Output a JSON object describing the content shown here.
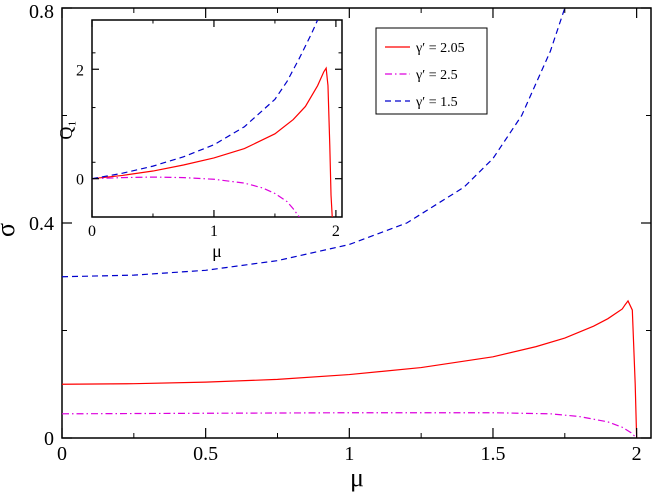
{
  "chart_data": [
    {
      "type": "line",
      "xlabel": "μ",
      "ylabel": "σ",
      "xlim": [
        0,
        2.05
      ],
      "ylim": [
        0,
        0.8
      ],
      "xticks": [
        0,
        0.5,
        1,
        1.5,
        2
      ],
      "xtick_labels": [
        "0",
        "0.5",
        "1",
        "1.5",
        "2"
      ],
      "yticks": [
        0,
        0.4,
        0.8
      ],
      "ytick_labels": [
        "0",
        "0.4",
        "0.8"
      ],
      "legend": {
        "placement": "top-right"
      },
      "series": [
        {
          "name": "γ′ = 2.05",
          "color": "#ff0000",
          "dash": "solid",
          "x": [
            0,
            0.25,
            0.5,
            0.75,
            1.0,
            1.25,
            1.5,
            1.65,
            1.75,
            1.85,
            1.9,
            1.95,
            1.96,
            1.97,
            1.985,
            1.995,
            2.0
          ],
          "y": [
            0.1,
            0.101,
            0.104,
            0.109,
            0.118,
            0.131,
            0.151,
            0.17,
            0.186,
            0.208,
            0.222,
            0.24,
            0.248,
            0.255,
            0.238,
            0.1,
            0.0
          ]
        },
        {
          "name": "γ′ = 2.5",
          "color": "#dd00dd",
          "dash": "dashdot",
          "x": [
            0,
            0.5,
            1.0,
            1.5,
            1.7,
            1.8,
            1.9,
            1.95,
            1.98,
            2.0
          ],
          "y": [
            0.045,
            0.046,
            0.047,
            0.047,
            0.045,
            0.04,
            0.03,
            0.02,
            0.01,
            0.0
          ]
        },
        {
          "name": "γ′ = 1.5",
          "color": "#0000cc",
          "dash": "dashed",
          "x": [
            0,
            0.25,
            0.5,
            0.75,
            1.0,
            1.2,
            1.4,
            1.5,
            1.6,
            1.7,
            1.75
          ],
          "y": [
            0.3,
            0.303,
            0.312,
            0.33,
            0.36,
            0.4,
            0.467,
            0.52,
            0.6,
            0.72,
            0.8
          ]
        }
      ]
    },
    {
      "type": "line",
      "inset": true,
      "xlabel": "μ",
      "ylabel": "Q₁",
      "xlim": [
        0,
        2.05
      ],
      "ylim": [
        -0.7,
        2.9
      ],
      "xticks": [
        0,
        1,
        2
      ],
      "xtick_labels": [
        "0",
        "1",
        "2"
      ],
      "yticks": [
        0,
        2
      ],
      "ytick_labels": [
        "0",
        "2"
      ],
      "series": [
        {
          "name": "γ′ = 2.05",
          "color": "#ff0000",
          "dash": "solid",
          "x": [
            0,
            0.25,
            0.5,
            0.75,
            1.0,
            1.25,
            1.5,
            1.65,
            1.75,
            1.85,
            1.9,
            1.92,
            1.935,
            1.95,
            1.96,
            1.97
          ],
          "y": [
            0,
            0.06,
            0.14,
            0.25,
            0.38,
            0.55,
            0.82,
            1.08,
            1.32,
            1.7,
            1.95,
            2.02,
            1.7,
            0.6,
            -0.3,
            -0.7
          ]
        },
        {
          "name": "γ′ = 2.5",
          "color": "#dd00dd",
          "dash": "dashdot",
          "x": [
            0,
            0.25,
            0.5,
            0.75,
            1.0,
            1.25,
            1.4,
            1.5,
            1.6,
            1.65,
            1.7
          ],
          "y": [
            0,
            0.02,
            0.03,
            0.02,
            -0.01,
            -0.08,
            -0.17,
            -0.27,
            -0.42,
            -0.55,
            -0.7
          ]
        },
        {
          "name": "γ′ = 1.5",
          "color": "#0000cc",
          "dash": "dashed",
          "x": [
            0,
            0.25,
            0.5,
            0.75,
            1.0,
            1.25,
            1.5,
            1.6,
            1.7,
            1.8,
            1.85
          ],
          "y": [
            0,
            0.1,
            0.23,
            0.4,
            0.62,
            0.95,
            1.45,
            1.78,
            2.2,
            2.65,
            2.9
          ]
        }
      ]
    }
  ]
}
